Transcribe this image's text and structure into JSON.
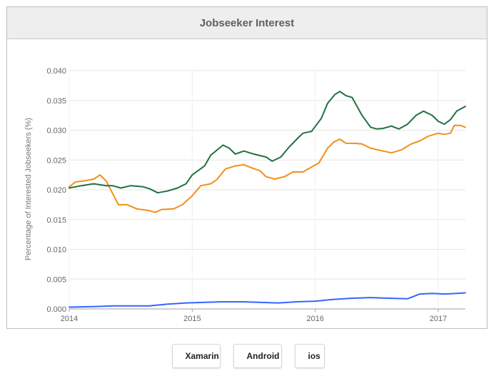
{
  "header": {
    "title": "Jobseeker Interest"
  },
  "colors": {
    "Xamarin": "#3366ff",
    "Android": "#f0901a",
    "ios": "#1f7040"
  },
  "legend": {
    "items": [
      {
        "name": "Xamarin",
        "color": "#3366ff"
      },
      {
        "name": "Android",
        "color": "#f0901a"
      },
      {
        "name": "ios",
        "color": "#1f7040"
      }
    ]
  },
  "chart_data": {
    "type": "line",
    "title": "Jobseeker Interest",
    "ylabel": "Percentage of Interested Jobseekers (%)",
    "xlabel": "",
    "ylim": [
      0,
      0.04
    ],
    "xlim": [
      2014.0,
      2017.22
    ],
    "grid": true,
    "legend_position": "bottom",
    "yticks": [
      "0.000",
      "0.005",
      "0.010",
      "0.015",
      "0.020",
      "0.025",
      "0.030",
      "0.035",
      "0.040"
    ],
    "ytick_values": [
      0,
      0.005,
      0.01,
      0.015,
      0.02,
      0.025,
      0.03,
      0.035,
      0.04
    ],
    "xticks": [
      "2014",
      "2015",
      "2016",
      "2017"
    ],
    "xtick_values": [
      2014,
      2015,
      2016,
      2017
    ],
    "series": [
      {
        "name": "Xamarin",
        "color": "#3366ff",
        "points": [
          [
            2014.0,
            0.0003
          ],
          [
            2014.2,
            0.0004
          ],
          [
            2014.35,
            0.0005
          ],
          [
            2014.5,
            0.0005
          ],
          [
            2014.65,
            0.0005
          ],
          [
            2014.8,
            0.0008
          ],
          [
            2014.95,
            0.001
          ],
          [
            2015.1,
            0.0011
          ],
          [
            2015.25,
            0.0012
          ],
          [
            2015.4,
            0.0012
          ],
          [
            2015.55,
            0.0011
          ],
          [
            2015.7,
            0.001
          ],
          [
            2015.85,
            0.0012
          ],
          [
            2016.0,
            0.0013
          ],
          [
            2016.15,
            0.0016
          ],
          [
            2016.3,
            0.0018
          ],
          [
            2016.45,
            0.0019
          ],
          [
            2016.6,
            0.0018
          ],
          [
            2016.75,
            0.0017
          ],
          [
            2016.85,
            0.0025
          ],
          [
            2016.95,
            0.0026
          ],
          [
            2017.05,
            0.0025
          ],
          [
            2017.15,
            0.0026
          ],
          [
            2017.22,
            0.0027
          ]
        ]
      },
      {
        "name": "Android",
        "color": "#f0901a",
        "points": [
          [
            2014.0,
            0.0205
          ],
          [
            2014.05,
            0.0213
          ],
          [
            2014.12,
            0.0215
          ],
          [
            2014.2,
            0.0218
          ],
          [
            2014.25,
            0.0225
          ],
          [
            2014.3,
            0.0215
          ],
          [
            2014.35,
            0.0195
          ],
          [
            2014.4,
            0.0175
          ],
          [
            2014.47,
            0.0175
          ],
          [
            2014.55,
            0.0168
          ],
          [
            2014.65,
            0.0165
          ],
          [
            2014.7,
            0.0162
          ],
          [
            2014.75,
            0.0167
          ],
          [
            2014.85,
            0.0168
          ],
          [
            2014.92,
            0.0175
          ],
          [
            2015.0,
            0.019
          ],
          [
            2015.07,
            0.0207
          ],
          [
            2015.15,
            0.021
          ],
          [
            2015.2,
            0.0217
          ],
          [
            2015.27,
            0.0235
          ],
          [
            2015.35,
            0.024
          ],
          [
            2015.42,
            0.0242
          ],
          [
            2015.48,
            0.0237
          ],
          [
            2015.55,
            0.0232
          ],
          [
            2015.6,
            0.0222
          ],
          [
            2015.67,
            0.0218
          ],
          [
            2015.75,
            0.0222
          ],
          [
            2015.82,
            0.023
          ],
          [
            2015.9,
            0.023
          ],
          [
            2015.96,
            0.0237
          ],
          [
            2016.03,
            0.0245
          ],
          [
            2016.1,
            0.027
          ],
          [
            2016.15,
            0.028
          ],
          [
            2016.2,
            0.0285
          ],
          [
            2016.25,
            0.0278
          ],
          [
            2016.32,
            0.0278
          ],
          [
            2016.38,
            0.0277
          ],
          [
            2016.45,
            0.027
          ],
          [
            2016.55,
            0.0265
          ],
          [
            2016.62,
            0.0262
          ],
          [
            2016.7,
            0.0267
          ],
          [
            2016.78,
            0.0277
          ],
          [
            2016.85,
            0.0282
          ],
          [
            2016.92,
            0.029
          ],
          [
            2017.0,
            0.0295
          ],
          [
            2017.05,
            0.0293
          ],
          [
            2017.1,
            0.0295
          ],
          [
            2017.13,
            0.0308
          ],
          [
            2017.18,
            0.0308
          ],
          [
            2017.22,
            0.0305
          ]
        ]
      },
      {
        "name": "ios",
        "color": "#1f7040",
        "points": [
          [
            2014.0,
            0.0203
          ],
          [
            2014.1,
            0.0207
          ],
          [
            2014.2,
            0.021
          ],
          [
            2014.3,
            0.0207
          ],
          [
            2014.35,
            0.0207
          ],
          [
            2014.42,
            0.0203
          ],
          [
            2014.5,
            0.0207
          ],
          [
            2014.6,
            0.0205
          ],
          [
            2014.65,
            0.0202
          ],
          [
            2014.72,
            0.0195
          ],
          [
            2014.8,
            0.0198
          ],
          [
            2014.88,
            0.0203
          ],
          [
            2014.95,
            0.021
          ],
          [
            2015.0,
            0.0225
          ],
          [
            2015.1,
            0.024
          ],
          [
            2015.15,
            0.0258
          ],
          [
            2015.25,
            0.0275
          ],
          [
            2015.3,
            0.027
          ],
          [
            2015.35,
            0.026
          ],
          [
            2015.42,
            0.0265
          ],
          [
            2015.5,
            0.026
          ],
          [
            2015.6,
            0.0255
          ],
          [
            2015.65,
            0.0248
          ],
          [
            2015.72,
            0.0255
          ],
          [
            2015.78,
            0.027
          ],
          [
            2015.85,
            0.0285
          ],
          [
            2015.9,
            0.0295
          ],
          [
            2015.97,
            0.0298
          ],
          [
            2016.05,
            0.032
          ],
          [
            2016.1,
            0.0345
          ],
          [
            2016.16,
            0.036
          ],
          [
            2016.2,
            0.0365
          ],
          [
            2016.25,
            0.0358
          ],
          [
            2016.3,
            0.0355
          ],
          [
            2016.38,
            0.0325
          ],
          [
            2016.45,
            0.0305
          ],
          [
            2016.5,
            0.0302
          ],
          [
            2016.55,
            0.0303
          ],
          [
            2016.62,
            0.0307
          ],
          [
            2016.68,
            0.0302
          ],
          [
            2016.75,
            0.031
          ],
          [
            2016.82,
            0.0325
          ],
          [
            2016.88,
            0.0332
          ],
          [
            2016.95,
            0.0325
          ],
          [
            2017.0,
            0.0315
          ],
          [
            2017.05,
            0.031
          ],
          [
            2017.1,
            0.0318
          ],
          [
            2017.15,
            0.0332
          ],
          [
            2017.22,
            0.034
          ]
        ]
      }
    ]
  }
}
